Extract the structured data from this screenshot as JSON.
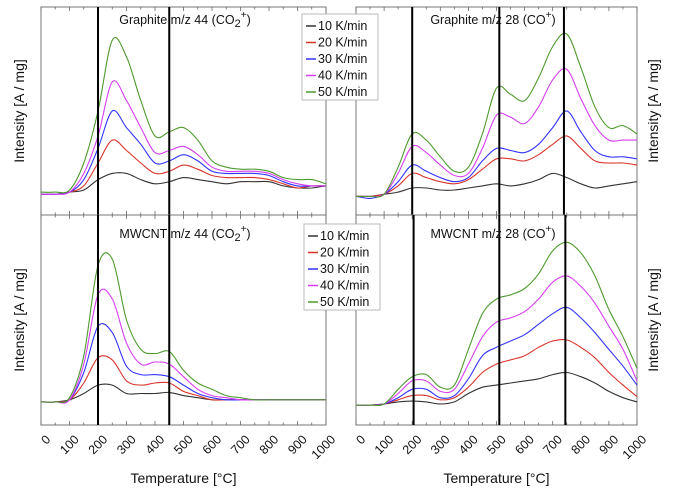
{
  "chart_data": [
    {
      "type": "line",
      "panel": "top-left",
      "title": "Graphite m/z 44 (CO",
      "title_sub": "2",
      "title_sup": "+",
      "title_end": ")",
      "xlabel": "",
      "ylabel": "Intensity [A / mg]",
      "xlim": [
        0,
        1000
      ],
      "ylim": [
        0,
        100
      ],
      "x": [
        0,
        50,
        100,
        150,
        200,
        250,
        300,
        350,
        400,
        450,
        500,
        550,
        600,
        650,
        700,
        750,
        800,
        850,
        900,
        950,
        1000
      ],
      "vlines": [
        200,
        450
      ],
      "series": [
        {
          "name": "10 K/min",
          "color": "#333333",
          "values": [
            10,
            10,
            11,
            12,
            17,
            20,
            20,
            17,
            15,
            16,
            18,
            17,
            16,
            15,
            16,
            16,
            16,
            14,
            13,
            13,
            14
          ]
        },
        {
          "name": "20 K/min",
          "color": "#d9342b",
          "values": [
            10,
            10,
            11,
            14,
            25,
            36,
            31,
            25,
            20,
            21,
            24,
            22,
            19,
            18,
            18,
            18,
            17,
            15,
            13,
            14,
            14
          ]
        },
        {
          "name": "30 K/min",
          "color": "#3333ff",
          "values": [
            10,
            10,
            11,
            17,
            32,
            50,
            42,
            34,
            25,
            26,
            29,
            26,
            21,
            20,
            20,
            20,
            19,
            16,
            14,
            14,
            14
          ]
        },
        {
          "name": "40 K/min",
          "color": "#d63ef0",
          "values": [
            10,
            10,
            11,
            20,
            38,
            64,
            55,
            42,
            30,
            31,
            33,
            29,
            23,
            21,
            21,
            21,
            20,
            17,
            15,
            14,
            14
          ]
        },
        {
          "name": "50 K/min",
          "color": "#4f9a2e",
          "values": [
            11,
            11,
            12,
            25,
            50,
            84,
            76,
            55,
            38,
            40,
            42,
            36,
            26,
            23,
            22,
            22,
            21,
            18,
            17,
            17,
            15
          ]
        }
      ]
    },
    {
      "type": "line",
      "panel": "top-right",
      "title": "Graphite m/z 28 (CO",
      "title_sub": "",
      "title_sup": "+",
      "title_end": ")",
      "xlabel": "",
      "ylabel": "Intensity [A / mg]",
      "xlim": [
        0,
        1000
      ],
      "ylim": [
        0,
        100
      ],
      "x": [
        0,
        50,
        100,
        150,
        200,
        250,
        300,
        350,
        400,
        450,
        500,
        550,
        600,
        650,
        700,
        750,
        800,
        850,
        900,
        950,
        1000
      ],
      "vlines": [
        200,
        510,
        740
      ],
      "series": [
        {
          "name": "10 K/min",
          "color": "#333333",
          "values": [
            9,
            9,
            10,
            11,
            13,
            13,
            12,
            12,
            13,
            14,
            15,
            14,
            15,
            17,
            20,
            18,
            15,
            13,
            14,
            15,
            16
          ]
        },
        {
          "name": "20 K/min",
          "color": "#d9342b",
          "values": [
            9,
            9,
            10,
            14,
            20,
            18,
            16,
            15,
            17,
            22,
            27,
            27,
            26,
            29,
            34,
            38,
            32,
            26,
            25,
            25,
            24
          ]
        },
        {
          "name": "30 K/min",
          "color": "#3333ff",
          "values": [
            9,
            8,
            10,
            16,
            24,
            21,
            18,
            16,
            18,
            26,
            32,
            31,
            30,
            34,
            42,
            50,
            40,
            31,
            28,
            28,
            27
          ]
        },
        {
          "name": "40 K/min",
          "color": "#d63ef0",
          "values": [
            9,
            9,
            10,
            20,
            33,
            30,
            24,
            19,
            20,
            32,
            48,
            47,
            44,
            52,
            65,
            70,
            56,
            43,
            36,
            36,
            36
          ]
        },
        {
          "name": "50 K/min",
          "color": "#4f9a2e",
          "values": [
            9,
            9,
            10,
            23,
            39,
            36,
            28,
            21,
            23,
            39,
            61,
            58,
            55,
            66,
            81,
            87,
            71,
            52,
            42,
            43,
            39
          ]
        }
      ]
    },
    {
      "type": "line",
      "panel": "bottom-left",
      "title": "MWCNT m/z 44 (CO",
      "title_sub": "2",
      "title_sup": "+",
      "title_end": ")",
      "xlabel": "Temperature [°C]",
      "ylabel": "Intensity [A / mg]",
      "xlim": [
        0,
        1000
      ],
      "ylim": [
        0,
        100
      ],
      "x": [
        0,
        50,
        100,
        150,
        200,
        250,
        300,
        350,
        400,
        450,
        500,
        550,
        600,
        650,
        700,
        750,
        800,
        850,
        900,
        950,
        1000
      ],
      "xticks": [
        "0",
        "100",
        "200",
        "300",
        "400",
        "500",
        "600",
        "700",
        "800",
        "900",
        "1000"
      ],
      "vlines": [
        200,
        450
      ],
      "series": [
        {
          "name": "10 K/min",
          "color": "#333333",
          "values": [
            11,
            11,
            12,
            15,
            19,
            19,
            15,
            15,
            15,
            15.5,
            14,
            13,
            12,
            12,
            12,
            12,
            12,
            12,
            12,
            12,
            12
          ]
        },
        {
          "name": "20 K/min",
          "color": "#d9342b",
          "values": [
            11,
            11,
            12,
            20,
            32,
            31,
            21,
            19,
            20,
            20,
            16,
            14,
            12,
            12,
            12,
            12,
            12,
            12,
            12,
            12,
            12
          ]
        },
        {
          "name": "30 K/min",
          "color": "#3333ff",
          "values": [
            11,
            11,
            12,
            25,
            47,
            44,
            28,
            24,
            24,
            23,
            19,
            15,
            13,
            12,
            12,
            12,
            12,
            12,
            12,
            12,
            12
          ]
        },
        {
          "name": "40 K/min",
          "color": "#d63ef0",
          "values": [
            11,
            11,
            12,
            29,
            62,
            60,
            39,
            29,
            30,
            29,
            23,
            17,
            14,
            13,
            12,
            12,
            12,
            12,
            12,
            12,
            12
          ]
        },
        {
          "name": "50 K/min",
          "color": "#4f9a2e",
          "values": [
            11,
            11,
            13,
            33,
            76,
            79,
            50,
            36,
            34,
            35,
            26,
            20,
            17,
            14,
            13,
            12,
            12,
            12,
            12,
            12,
            12
          ]
        }
      ]
    },
    {
      "type": "line",
      "panel": "bottom-right",
      "title": "MWCNT m/z 28 (CO",
      "title_sub": "",
      "title_sup": "+",
      "title_end": ")",
      "xlabel": "Temperature [°C]",
      "ylabel": "Intensity [A / mg]",
      "xlim": [
        0,
        1000
      ],
      "ylim": [
        0,
        100
      ],
      "x": [
        0,
        50,
        100,
        150,
        200,
        250,
        300,
        350,
        400,
        450,
        500,
        550,
        600,
        650,
        700,
        750,
        800,
        850,
        900,
        950,
        1000
      ],
      "xticks": [
        "0",
        "100",
        "200",
        "300",
        "400",
        "500",
        "600",
        "700",
        "800",
        "900",
        "1000"
      ],
      "vlines": [
        205,
        510,
        745
      ],
      "series": [
        {
          "name": "10 K/min",
          "color": "#333333",
          "values": [
            9.5,
            9.5,
            10,
            11,
            11.4,
            11,
            10,
            11,
            15,
            18,
            19,
            20,
            21,
            22,
            24,
            25,
            23,
            20,
            16,
            13,
            11
          ]
        },
        {
          "name": "20 K/min",
          "color": "#d9342b",
          "values": [
            9.5,
            9.5,
            10,
            12,
            14,
            14,
            12,
            13,
            18,
            25,
            29,
            31,
            33,
            37,
            40,
            40.5,
            37,
            32,
            25,
            19,
            13.5
          ]
        },
        {
          "name": "30 K/min",
          "color": "#3333ff",
          "values": [
            9.5,
            9.5,
            10,
            13,
            17,
            17,
            13,
            14,
            22,
            33,
            37,
            40,
            43,
            48,
            53,
            56,
            51,
            44,
            36,
            28,
            19
          ]
        },
        {
          "name": "40 K/min",
          "color": "#d63ef0",
          "values": [
            9.5,
            9.5,
            10,
            15,
            21,
            21,
            16,
            17,
            29,
            42,
            49,
            51,
            54,
            60,
            68,
            71,
            66,
            58,
            47,
            36,
            21
          ]
        },
        {
          "name": "50 K/min",
          "color": "#4f9a2e",
          "values": [
            9.5,
            9.5,
            10,
            17,
            23,
            24,
            18,
            19,
            36,
            53,
            60,
            62,
            65,
            72,
            83,
            87,
            82,
            71,
            55,
            42,
            27
          ]
        }
      ]
    }
  ],
  "legend": {
    "entries": [
      "10 K/min",
      "20 K/min",
      "30 K/min",
      "40 K/min",
      "50 K/min"
    ],
    "colors": [
      "#333333",
      "#d9342b",
      "#3333ff",
      "#d63ef0",
      "#4f9a2e"
    ],
    "placement": "center-top of each row (between panels)"
  }
}
